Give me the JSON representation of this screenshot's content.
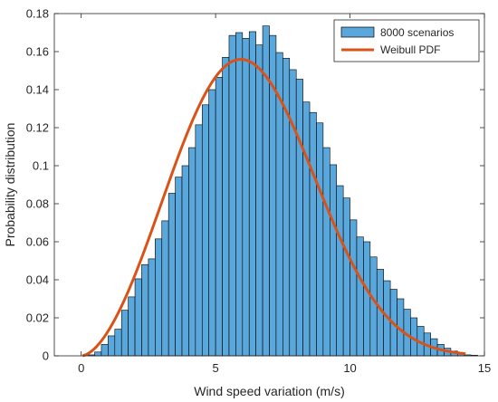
{
  "chart_data": {
    "type": "bar",
    "xlabel": "Wind speed variation (m/s)",
    "ylabel": "Probability distribution",
    "xlim": [
      -1,
      15
    ],
    "ylim": [
      0,
      0.18
    ],
    "xticks": [
      0,
      5,
      10,
      15
    ],
    "xtick_labels": [
      "0",
      "5",
      "10",
      "15"
    ],
    "yticks": [
      0,
      0.02,
      0.04,
      0.06,
      0.08,
      0.1,
      0.12,
      0.14,
      0.16,
      0.18
    ],
    "ytick_labels": [
      "0",
      "0.02",
      "0.04",
      "0.06",
      "0.08",
      "0.1",
      "0.12",
      "0.14",
      "0.16",
      "0.18"
    ],
    "grid": false,
    "legend_placement": "top-right",
    "series": [
      {
        "name": "8000 scenarios",
        "kind": "histogram",
        "color": "#5aa7dc",
        "edge_color": "#000000",
        "bin_width": 0.25,
        "bin_edges_start": 0.25,
        "values": [
          0.0005,
          0.002,
          0.006,
          0.0105,
          0.014,
          0.024,
          0.031,
          0.0405,
          0.048,
          0.051,
          0.0615,
          0.071,
          0.0855,
          0.094,
          0.1,
          0.1095,
          0.1215,
          0.132,
          0.14,
          0.1465,
          0.157,
          0.1685,
          0.17,
          0.167,
          0.1705,
          0.1635,
          0.1735,
          0.1685,
          0.1595,
          0.1565,
          0.1505,
          0.1455,
          0.1335,
          0.128,
          0.1225,
          0.1095,
          0.1005,
          0.0895,
          0.083,
          0.0715,
          0.0625,
          0.06,
          0.052,
          0.0455,
          0.0395,
          0.035,
          0.03,
          0.0245,
          0.02,
          0.0155,
          0.012,
          0.009,
          0.006,
          0.004,
          0.0025,
          0.0015,
          0.0005,
          0.0003
        ]
      },
      {
        "name": "Weibull PDF",
        "kind": "line",
        "color": "#d95319",
        "distribution": "weibull",
        "shape_k": 2.75,
        "scale_lambda": 7.0,
        "x_range": [
          0.05,
          14.3
        ]
      }
    ]
  }
}
